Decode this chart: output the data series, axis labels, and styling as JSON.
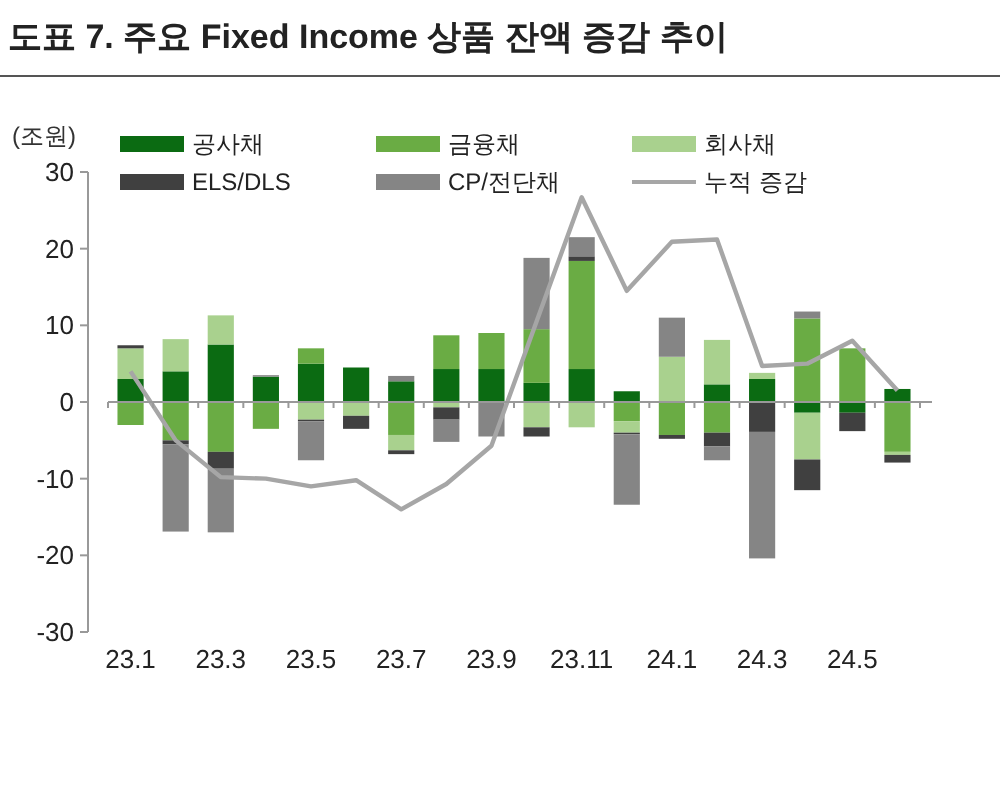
{
  "chart_data": {
    "type": "bar",
    "stacked": true,
    "title": "도표 7. 주요 Fixed Income 상품 잔액 증감 추이",
    "ylabel": "(조원)",
    "categories": [
      "23.1",
      null,
      "23.3",
      null,
      "23.5",
      null,
      "23.7",
      null,
      "23.9",
      null,
      "23.11",
      null,
      "24.1",
      null,
      "24.3",
      null,
      "24.5",
      null
    ],
    "series": [
      {
        "name": "공사채",
        "color": "#0b6b12",
        "values": [
          3,
          4,
          7.5,
          3.3,
          5,
          4.5,
          2.7,
          4.3,
          4.3,
          2.5,
          4.3,
          1.4,
          0,
          2.3,
          3,
          -1.4,
          -1.4,
          1.7
        ]
      },
      {
        "name": "금융채",
        "color": "#6aac44",
        "values": [
          -3,
          -5,
          -6.5,
          -3.5,
          2,
          0,
          -4.3,
          4.4,
          4.7,
          7,
          14.1,
          -2.5,
          -4.3,
          -4,
          0,
          10.9,
          7,
          -6.5
        ]
      },
      {
        "name": "회사채",
        "color": "#a9d18e",
        "values": [
          4,
          4.2,
          3.8,
          0,
          -2.3,
          -1.8,
          -2,
          -0.7,
          0,
          -3.3,
          -3.3,
          -1.5,
          5.9,
          5.8,
          0.8,
          -6.1,
          0,
          -0.4
        ]
      },
      {
        "name": "ELS/DLS",
        "color": "#404040",
        "values": [
          0.4,
          -0.5,
          -2.2,
          0,
          -0.2,
          -1.7,
          -0.5,
          -1.6,
          0,
          -1.2,
          0.6,
          -0.2,
          -0.5,
          -1.8,
          -3.9,
          -4,
          -2.4,
          -1
        ]
      },
      {
        "name": "CP/전단채",
        "color": "#858585",
        "values": [
          0,
          -11.4,
          -8.3,
          0.2,
          -5.1,
          0,
          0.7,
          -2.9,
          -4.5,
          9.3,
          2.5,
          -9.2,
          5.1,
          -1.8,
          -16.5,
          0.9,
          0,
          0
        ]
      },
      {
        "name": "누적 증감",
        "type": "line",
        "color": "#a6a6a6",
        "values": [
          4,
          -5,
          -9.8,
          -10,
          -11,
          -10.2,
          -14,
          -10.7,
          -5.7,
          10.5,
          26.7,
          14.5,
          20.9,
          21.2,
          4.7,
          5,
          8,
          1.5
        ]
      }
    ],
    "ylim": [
      -30,
      30
    ],
    "yticks": [
      -30,
      -20,
      -10,
      0,
      10,
      20,
      30
    ],
    "legend": "top",
    "marker": "none",
    "line_style": "solid"
  }
}
